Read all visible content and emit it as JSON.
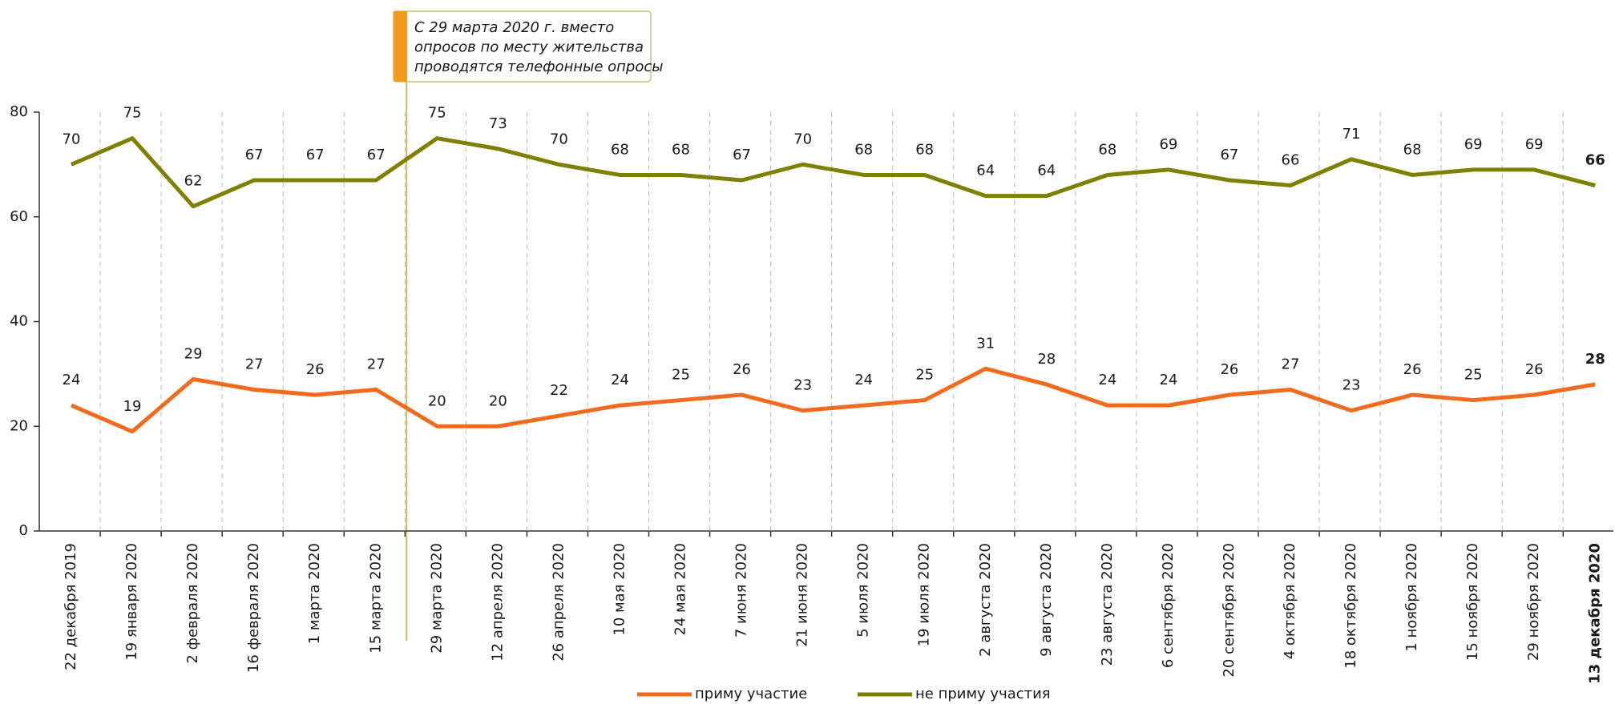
{
  "chart_data": {
    "type": "line",
    "annotation": [
      "С 29 марта 2020 г. вместо",
      "опросов по месту жительства",
      "проводятся телефонные опросы"
    ],
    "categories": [
      "22 декабря 2019",
      "19 января 2020",
      "2 февраля 2020",
      "16 февраля 2020",
      "1 марта 2020",
      "15 марта 2020",
      "29 марта 2020",
      "12 апреля 2020",
      "26 апреля 2020",
      "10 мая 2020",
      "24 мая 2020",
      "7 июня 2020",
      "21 июня 2020",
      "5 июля 2020",
      "19 июля 2020",
      "2 августа 2020",
      "9 августа 2020",
      "23 августа 2020",
      "6 сентября 2020",
      "20 сентября 2020",
      "4 октября 2020",
      "18 октября 2020",
      "1 ноября 2020",
      "15 ноября 2020",
      "29 ноября 2020",
      "13 декабря 2020"
    ],
    "series": [
      {
        "name": "приму участие",
        "color": "#f26b1d",
        "values": [
          24,
          19,
          29,
          27,
          26,
          27,
          20,
          20,
          22,
          24,
          25,
          26,
          23,
          24,
          25,
          31,
          28,
          24,
          24,
          26,
          27,
          23,
          26,
          25,
          26,
          28
        ]
      },
      {
        "name": "не приму участия",
        "color": "#808000",
        "values": [
          70,
          75,
          62,
          67,
          67,
          67,
          75,
          73,
          70,
          68,
          68,
          67,
          70,
          68,
          68,
          64,
          64,
          68,
          69,
          67,
          66,
          71,
          68,
          69,
          69,
          66
        ]
      }
    ],
    "ylim": [
      0,
      80
    ],
    "yticks": [
      0,
      20,
      40,
      60,
      80
    ]
  }
}
